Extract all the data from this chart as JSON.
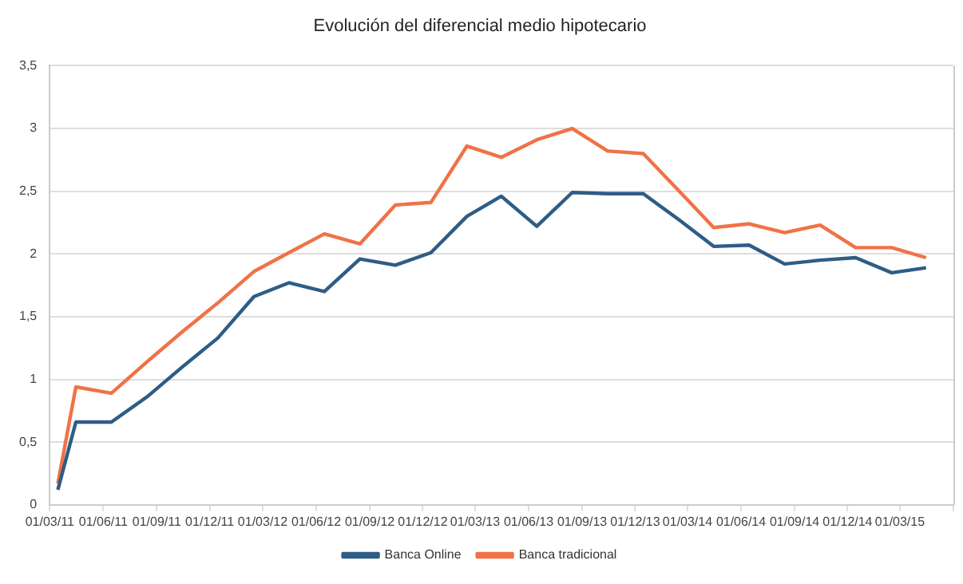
{
  "chart_data": {
    "type": "line",
    "title": "Evolución del diferencial medio hipotecario",
    "x": [
      "2011-03-15",
      "2011-04-15",
      "2011-06-15",
      "2011-08-15",
      "2011-10-15",
      "2011-12-15",
      "2012-02-15",
      "2012-04-15",
      "2012-06-15",
      "2012-08-15",
      "2012-10-15",
      "2012-12-15",
      "2013-02-15",
      "2013-04-15",
      "2013-06-15",
      "2013-08-15",
      "2013-10-15",
      "2013-12-15",
      "2014-02-15",
      "2014-04-15",
      "2014-06-15",
      "2014-08-15",
      "2014-10-15",
      "2014-12-15",
      "2015-02-15",
      "2015-04-15"
    ],
    "series": [
      {
        "name": "Banca Online",
        "color": "#2e5d86",
        "values": [
          0.12,
          0.66,
          0.66,
          0.86,
          1.1,
          1.33,
          1.66,
          1.77,
          1.7,
          1.96,
          1.91,
          2.01,
          2.3,
          2.46,
          2.22,
          2.49,
          2.48,
          2.48,
          2.27,
          2.06,
          2.07,
          1.92,
          1.95,
          1.97,
          1.85,
          1.89
        ]
      },
      {
        "name": "Banca tradicional",
        "color": "#f07246",
        "values": [
          0.17,
          0.94,
          0.89,
          1.14,
          1.38,
          1.61,
          1.86,
          2.01,
          2.16,
          2.08,
          2.39,
          2.41,
          2.86,
          2.77,
          2.91,
          3.0,
          2.82,
          2.8,
          2.5,
          2.21,
          2.24,
          2.17,
          2.23,
          2.05,
          2.05,
          1.97
        ]
      }
    ],
    "xlim": [
      "2011-03-01",
      "2015-06-01"
    ],
    "xticks": [
      {
        "value": "2011-03-01",
        "label": "01/03/11"
      },
      {
        "value": "2011-06-01",
        "label": "01/06/11"
      },
      {
        "value": "2011-09-01",
        "label": "01/09/11"
      },
      {
        "value": "2011-12-01",
        "label": "01/12/11"
      },
      {
        "value": "2012-03-01",
        "label": "01/03/12"
      },
      {
        "value": "2012-06-01",
        "label": "01/06/12"
      },
      {
        "value": "2012-09-01",
        "label": "01/09/12"
      },
      {
        "value": "2012-12-01",
        "label": "01/12/12"
      },
      {
        "value": "2013-03-01",
        "label": "01/03/13"
      },
      {
        "value": "2013-06-01",
        "label": "01/06/13"
      },
      {
        "value": "2013-09-01",
        "label": "01/09/13"
      },
      {
        "value": "2013-12-01",
        "label": "01/12/13"
      },
      {
        "value": "2014-03-01",
        "label": "01/03/14"
      },
      {
        "value": "2014-06-01",
        "label": "01/06/14"
      },
      {
        "value": "2014-09-01",
        "label": "01/09/14"
      },
      {
        "value": "2014-12-01",
        "label": "01/12/14"
      },
      {
        "value": "2015-03-01",
        "label": "01/03/15"
      },
      {
        "value": "2015-06-01",
        "label": null
      }
    ],
    "ylim": [
      0,
      3.5
    ],
    "yticks": [
      0,
      {
        "value": 0.5,
        "label": "0,5"
      },
      1,
      {
        "value": 1.5,
        "label": "1,5"
      },
      2,
      {
        "value": 2.5,
        "label": "2,5"
      },
      3,
      {
        "value": 3.5,
        "label": "3,5"
      }
    ],
    "grid": "y",
    "legend": "bottom",
    "marker": "none",
    "line_style": "solid"
  }
}
